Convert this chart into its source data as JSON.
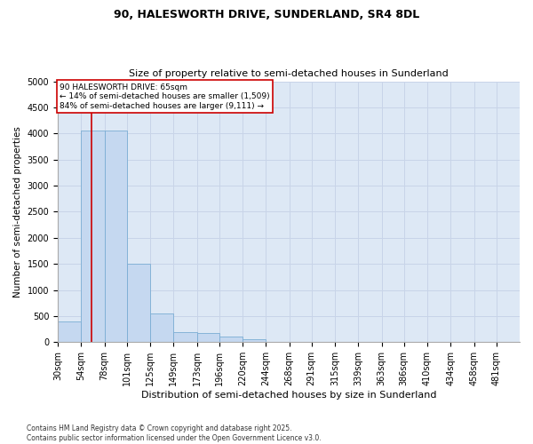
{
  "title1": "90, HALESWORTH DRIVE, SUNDERLAND, SR4 8DL",
  "title2": "Size of property relative to semi-detached houses in Sunderland",
  "xlabel": "Distribution of semi-detached houses by size in Sunderland",
  "ylabel": "Number of semi-detached properties",
  "footnote1": "Contains HM Land Registry data © Crown copyright and database right 2025.",
  "footnote2": "Contains public sector information licensed under the Open Government Licence v3.0.",
  "annotation_title": "90 HALESWORTH DRIVE: 65sqm",
  "annotation_line1": "← 14% of semi-detached houses are smaller (1,509)",
  "annotation_line2": "84% of semi-detached houses are larger (9,111) →",
  "property_size": 65,
  "bin_edges": [
    30,
    54,
    78,
    101,
    125,
    149,
    173,
    196,
    220,
    244,
    268,
    291,
    315,
    339,
    363,
    386,
    410,
    434,
    458,
    481,
    505
  ],
  "bar_heights": [
    400,
    4050,
    4050,
    1500,
    550,
    200,
    175,
    110,
    60,
    10,
    5,
    3,
    2,
    1,
    1,
    0,
    0,
    0,
    0,
    0
  ],
  "bar_color": "#c5d8f0",
  "bar_edge_color": "#7aadd4",
  "grid_color": "#c8d4e8",
  "background_color": "#dde8f5",
  "vline_color": "#cc0000",
  "ylim": [
    0,
    5000
  ],
  "yticks": [
    0,
    500,
    1000,
    1500,
    2000,
    2500,
    3000,
    3500,
    4000,
    4500,
    5000
  ],
  "title1_fontsize": 9,
  "title2_fontsize": 8,
  "ylabel_fontsize": 7.5,
  "xlabel_fontsize": 8,
  "tick_fontsize": 7,
  "annot_fontsize": 6.5,
  "footnote_fontsize": 5.5
}
